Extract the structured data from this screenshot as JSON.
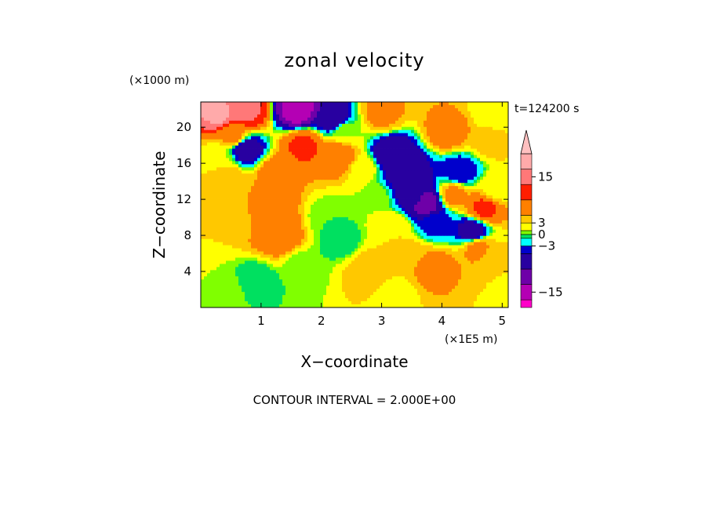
{
  "chart_data": {
    "type": "heatmap",
    "title": "zonal velocity",
    "xlabel": "X−coordinate",
    "ylabel": "Z−coordinate",
    "x_scale_label": "(×1E5 m)",
    "y_scale_label": "(×1000 m)",
    "time_label": "t=124200 s",
    "contour_interval_label": "CONTOUR INTERVAL = 2.000E+00",
    "xlim": [
      0,
      5.1
    ],
    "ylim": [
      0,
      22.8
    ],
    "x_ticks": [
      1,
      2,
      3,
      4,
      5
    ],
    "y_ticks": [
      4,
      8,
      12,
      16,
      20
    ],
    "x_tick_labels": [
      "1",
      "2",
      "3",
      "4",
      "5"
    ],
    "y_tick_labels": [
      "4",
      "8",
      "12",
      "16",
      "20"
    ],
    "colorbar": {
      "bounds": [
        -19,
        -17,
        -13,
        -9,
        -5,
        -3,
        -1,
        0,
        1,
        3,
        5,
        9,
        13,
        17,
        21
      ],
      "colors": [
        "#ff00c8",
        "#b400b4",
        "#6e00a8",
        "#2800a0",
        "#0000cc",
        "#00ffff",
        "#00e060",
        "#80ff00",
        "#ffff00",
        "#ffc800",
        "#ff8000",
        "#ff1e00",
        "#ff7878",
        "#ffaaaa"
      ],
      "tick_values": [
        15,
        3,
        0,
        -3,
        -15
      ],
      "tick_labels": [
        "15",
        "3",
        "0",
        "−3",
        "−15"
      ],
      "extend": "max"
    },
    "field_samples": [
      {
        "x": 0.3,
        "z": 21.5,
        "u": 18
      },
      {
        "x": 0.75,
        "z": 21.8,
        "u": 14
      },
      {
        "x": 0.55,
        "z": 19.0,
        "u": 6
      },
      {
        "x": 0.75,
        "z": 17.6,
        "u": -8
      },
      {
        "x": 0.3,
        "z": 16.5,
        "u": 1
      },
      {
        "x": 0.4,
        "z": 14.5,
        "u": 5
      },
      {
        "x": 1.25,
        "z": 15.0,
        "u": 7
      },
      {
        "x": 1.7,
        "z": 18.0,
        "u": 10
      },
      {
        "x": 2.3,
        "z": 16.8,
        "u": 9
      },
      {
        "x": 1.6,
        "z": 21.8,
        "u": -15
      },
      {
        "x": 2.2,
        "z": 21.0,
        "u": -8
      },
      {
        "x": 2.4,
        "z": 19.5,
        "u": 1
      },
      {
        "x": 1.2,
        "z": 10.5,
        "u": 8
      },
      {
        "x": 1.3,
        "z": 8.0,
        "u": 9
      },
      {
        "x": 0.5,
        "z": 9.5,
        "u": 3
      },
      {
        "x": 2.1,
        "z": 10.0,
        "u": 0
      },
      {
        "x": 2.3,
        "z": 7.5,
        "u": -1
      },
      {
        "x": 1.7,
        "z": 4.5,
        "u": 0
      },
      {
        "x": 0.4,
        "z": 2.0,
        "u": 1
      },
      {
        "x": 0.9,
        "z": 3.0,
        "u": -1
      },
      {
        "x": 1.3,
        "z": 1.0,
        "u": 0
      },
      {
        "x": 2.7,
        "z": 15.5,
        "u": 2
      },
      {
        "x": 2.9,
        "z": 12.0,
        "u": 1
      },
      {
        "x": 3.15,
        "z": 17.0,
        "u": -9
      },
      {
        "x": 3.4,
        "z": 15.0,
        "u": -9
      },
      {
        "x": 3.75,
        "z": 11.5,
        "u": -11
      },
      {
        "x": 3.5,
        "z": 12.5,
        "u": -7
      },
      {
        "x": 3.9,
        "z": 9.5,
        "u": -4
      },
      {
        "x": 4.5,
        "z": 8.5,
        "u": -7
      },
      {
        "x": 4.3,
        "z": 15.0,
        "u": -5
      },
      {
        "x": 4.1,
        "z": 19.5,
        "u": 7
      },
      {
        "x": 4.8,
        "z": 18.5,
        "u": 4
      },
      {
        "x": 4.9,
        "z": 13.0,
        "u": 2
      },
      {
        "x": 4.2,
        "z": 12.5,
        "u": 6
      },
      {
        "x": 4.7,
        "z": 11.0,
        "u": 10
      },
      {
        "x": 4.9,
        "z": 21.5,
        "u": 1
      },
      {
        "x": 3.0,
        "z": 21.5,
        "u": 6
      },
      {
        "x": 2.8,
        "z": 4.0,
        "u": 5
      },
      {
        "x": 3.4,
        "z": 6.0,
        "u": 4
      },
      {
        "x": 3.9,
        "z": 4.5,
        "u": 7
      },
      {
        "x": 4.4,
        "z": 3.0,
        "u": 5
      },
      {
        "x": 4.9,
        "z": 5.5,
        "u": 3
      },
      {
        "x": 4.9,
        "z": 1.0,
        "u": 2
      },
      {
        "x": 3.2,
        "z": 1.5,
        "u": 2
      },
      {
        "x": 4.6,
        "z": 6.5,
        "u": 6
      },
      {
        "x": 3.2,
        "z": 9.0,
        "u": 3
      }
    ]
  }
}
